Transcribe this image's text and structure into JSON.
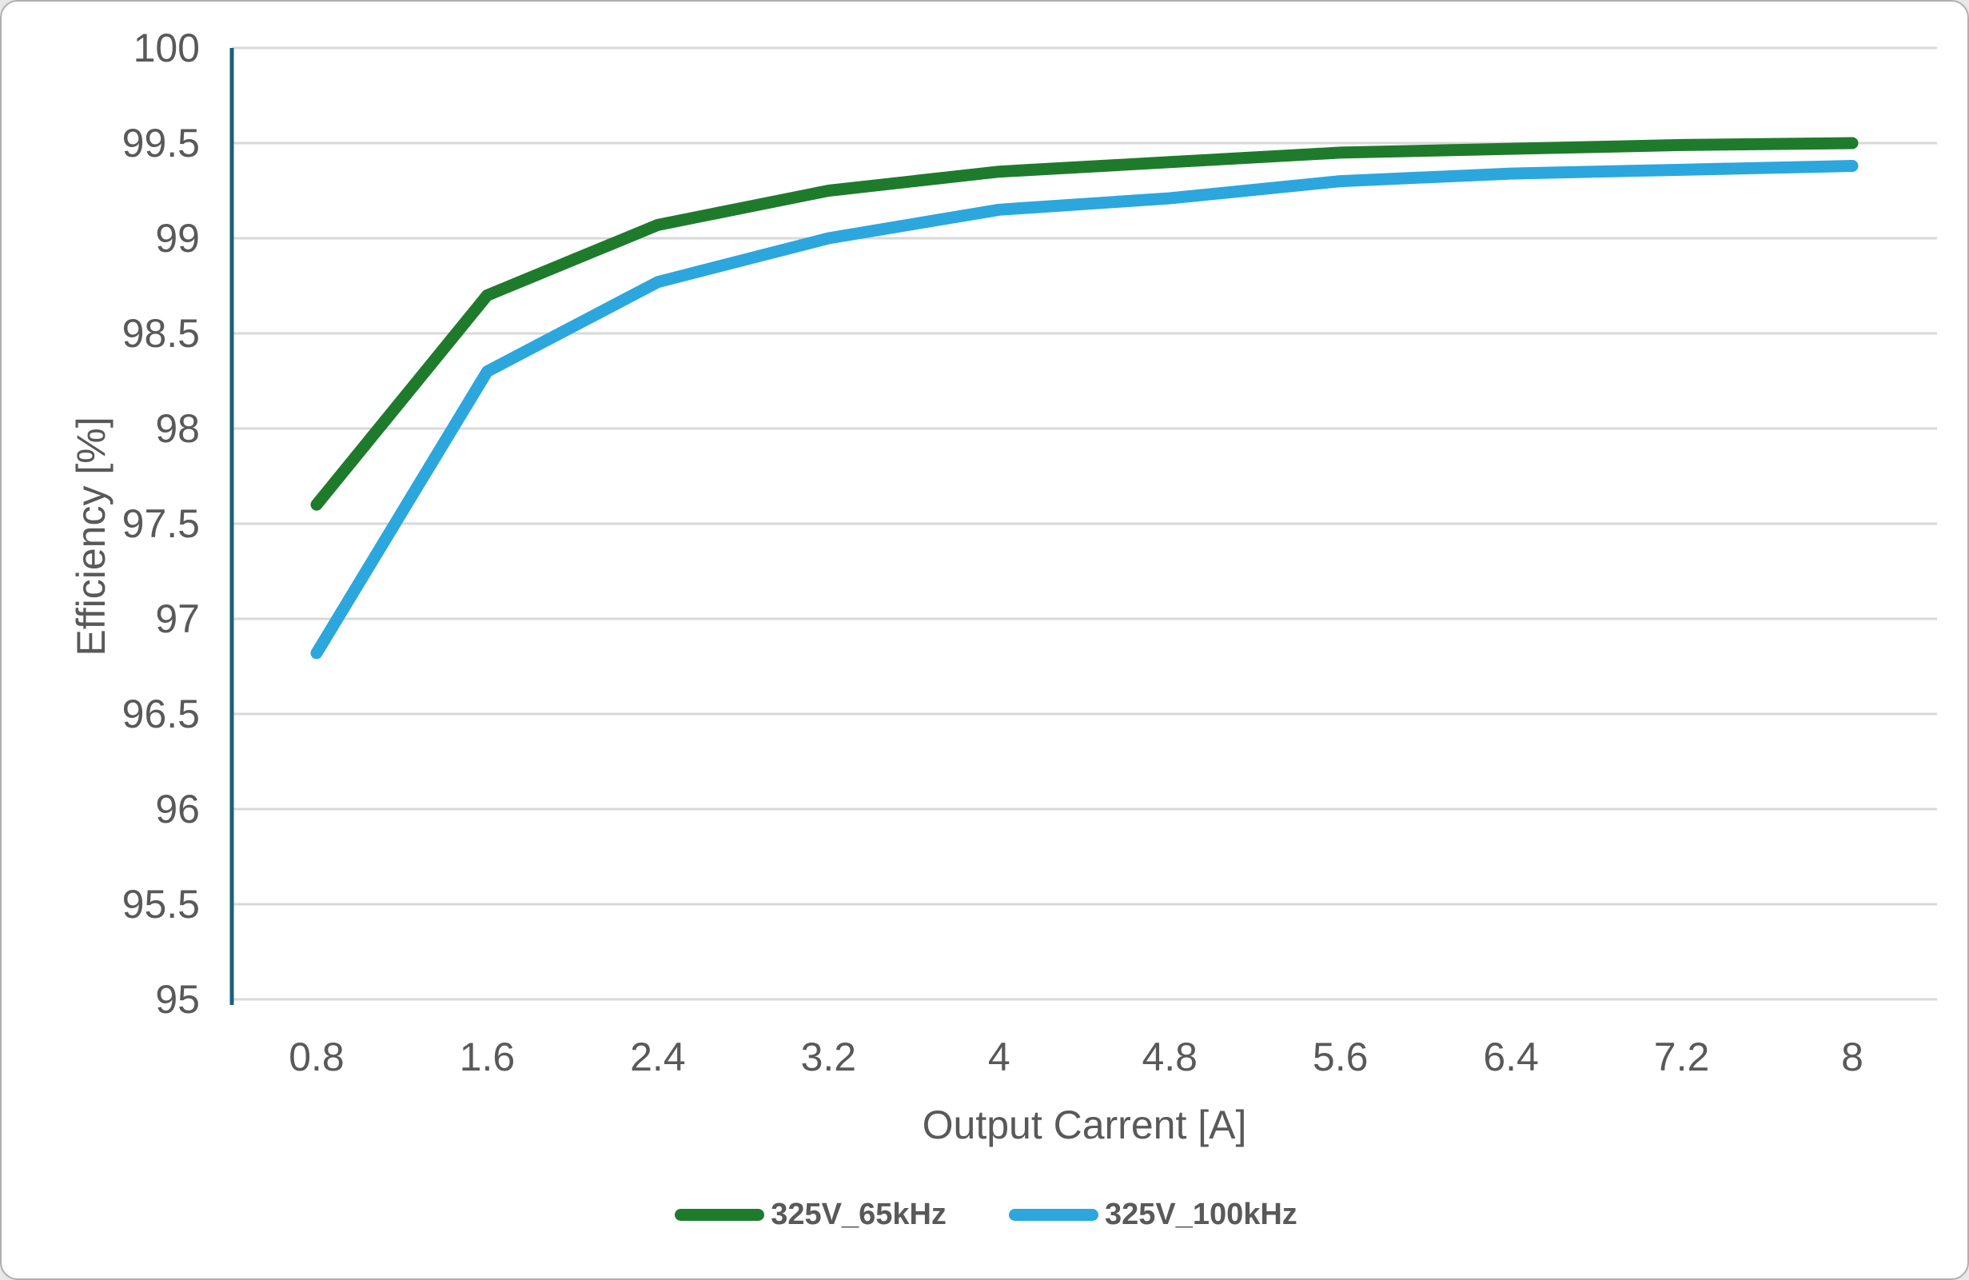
{
  "chart_data": {
    "type": "line",
    "title": "",
    "xlabel": "Output Carrent [A]",
    "ylabel": "Efficiency [%]",
    "x": [
      0.8,
      1.6,
      2.4,
      3.2,
      4,
      4.8,
      5.6,
      6.4,
      7.2,
      8
    ],
    "x_tick_labels": [
      "0.8",
      "1.6",
      "2.4",
      "3.2",
      "4",
      "4.8",
      "5.6",
      "6.4",
      "7.2",
      "8"
    ],
    "ylim": [
      95,
      100
    ],
    "y_step": 0.5,
    "y_tick_labels": [
      "95",
      "95.5",
      "96",
      "96.5",
      "97",
      "97.5",
      "98",
      "98.5",
      "99",
      "99.5",
      "100"
    ],
    "grid": "horizontal-only",
    "legend_position": "bottom-center",
    "series": [
      {
        "name": "325V_65kHz",
        "color": "#1f7b2c",
        "values": [
          97.6,
          98.7,
          99.07,
          99.25,
          99.35,
          99.4,
          99.45,
          99.47,
          99.49,
          99.5
        ]
      },
      {
        "name": "325V_100kHz",
        "color": "#2ba7de",
        "values": [
          96.82,
          98.3,
          98.77,
          99.0,
          99.15,
          99.21,
          99.3,
          99.34,
          99.36,
          99.38
        ]
      }
    ],
    "colors": {
      "gridline": "#d9d9d9",
      "y_axis_line": "#1a6178",
      "x_axis_line": "#d9d9d9",
      "tick_text": "#595959",
      "background": "#ffffff"
    }
  }
}
